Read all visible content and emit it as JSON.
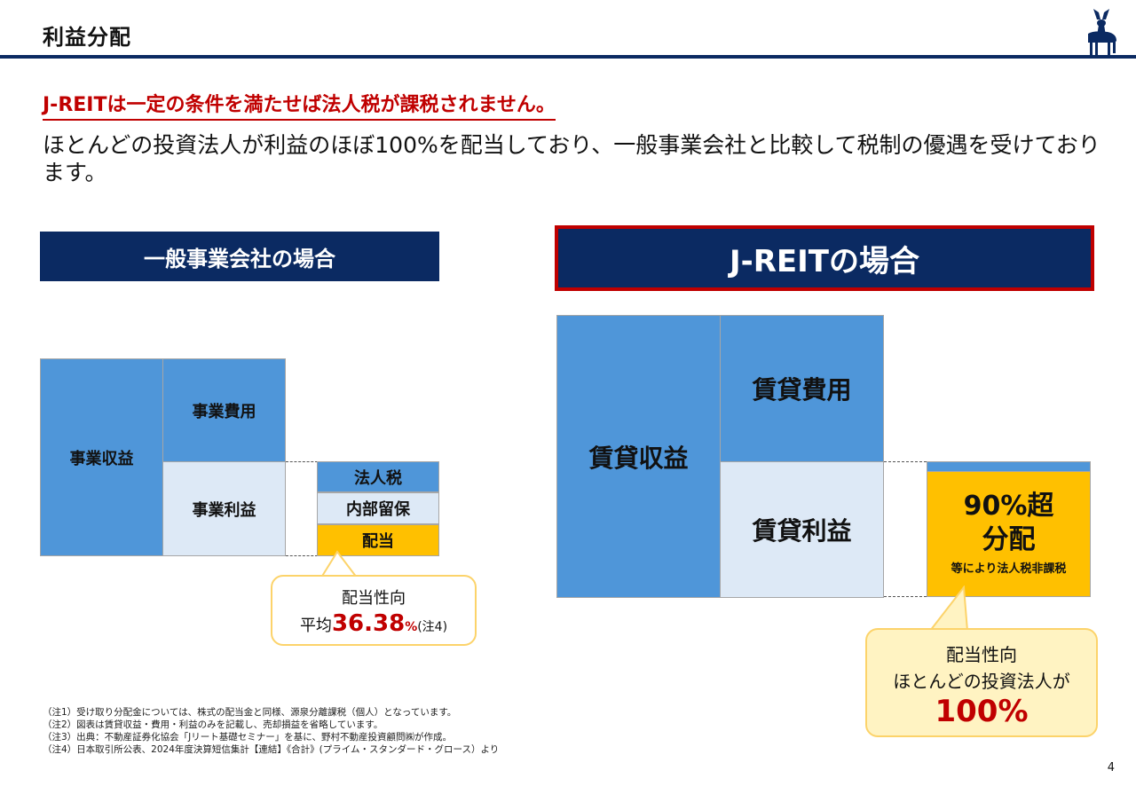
{
  "header": {
    "title": "利益分配"
  },
  "headline": "J-REITは一定の条件を満たせば法人税が課税されません。",
  "lead": "ほとんどの投資法人が利益のほぼ100%を配当しており、一般事業会社と比較して税制の優遇を受けております。",
  "left": {
    "band_title": "一般事業会社の場合",
    "revenue": "事業収益",
    "expense": "事業費用",
    "profit": "事業利益",
    "tax": "法人税",
    "retained": "内部留保",
    "dividend": "配当",
    "callout": {
      "label": "配当性向",
      "prefix": "平均",
      "value": "36.38",
      "unit": "%",
      "note": "(注4)"
    }
  },
  "right": {
    "band_title": "J-REITの場合",
    "revenue": "賃貸収益",
    "expense": "賃貸費用",
    "profit": "賃貸利益",
    "dividend_main": "90%超",
    "dividend_sub": "分配",
    "dividend_note": "等により法人税非課税",
    "callout": {
      "label": "配当性向",
      "line2": "ほとんどの投資法人が",
      "value": "100%"
    }
  },
  "notes": [
    "（注1）受け取り分配金については、株式の配当金と同様、源泉分離課税（個人）となっています。",
    "（注2）図表は賃貸収益・費用・利益のみを記載し、売却損益を省略しています。",
    "（注3）出典：不動産証券化協会「Jリート基礎セミナー」を基に、野村不動産投資顧問㈱が作成。",
    "（注4）日本取引所公表、2024年度決算短信集計【連結】《合計》(プライム・スタンダード・グロース）より"
  ],
  "page_number": "4",
  "colors": {
    "navy": "#0b2a62",
    "accent_red": "#c00000",
    "blue": "#4f96d9",
    "pale_blue": "#dde9f6",
    "gold": "#ffc000",
    "callout_fill": "#fff3c2"
  },
  "icons": {
    "logo": "deer-icon"
  }
}
